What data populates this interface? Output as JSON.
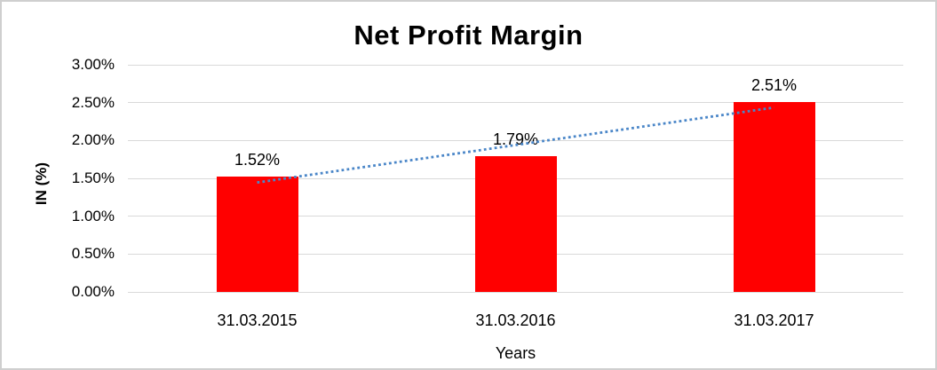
{
  "chart_data": {
    "type": "bar",
    "title": "Net Profit Margin",
    "xlabel": "Years",
    "ylabel": "IN (%)",
    "categories": [
      "31.03.2015",
      "31.03.2016",
      "31.03.2017"
    ],
    "values": [
      1.52,
      1.79,
      2.51
    ],
    "data_labels": [
      "1.52%",
      "1.79%",
      "2.51%"
    ],
    "ylim": [
      0,
      3
    ],
    "ytick_step": 0.5,
    "yticks": [
      {
        "value": 3.0,
        "label": "3.00%"
      },
      {
        "value": 2.5,
        "label": "2.50%"
      },
      {
        "value": 2.0,
        "label": "2.00%"
      },
      {
        "value": 1.5,
        "label": "1.50%"
      },
      {
        "value": 1.0,
        "label": "1.00%"
      },
      {
        "value": 0.5,
        "label": "0.50%"
      },
      {
        "value": 0.0,
        "label": "0.00%"
      }
    ],
    "grid": true,
    "legend": "none",
    "bar_color": "#FF0000",
    "trendline": {
      "type": "linear",
      "style": "dotted",
      "color": "#4A86C8",
      "start_value": 1.445,
      "end_value": 2.435
    },
    "colors": {
      "gridline": "#D9D9D9",
      "border": "#CFCFCF",
      "text": "#000000",
      "background": "#FFFFFF"
    }
  }
}
